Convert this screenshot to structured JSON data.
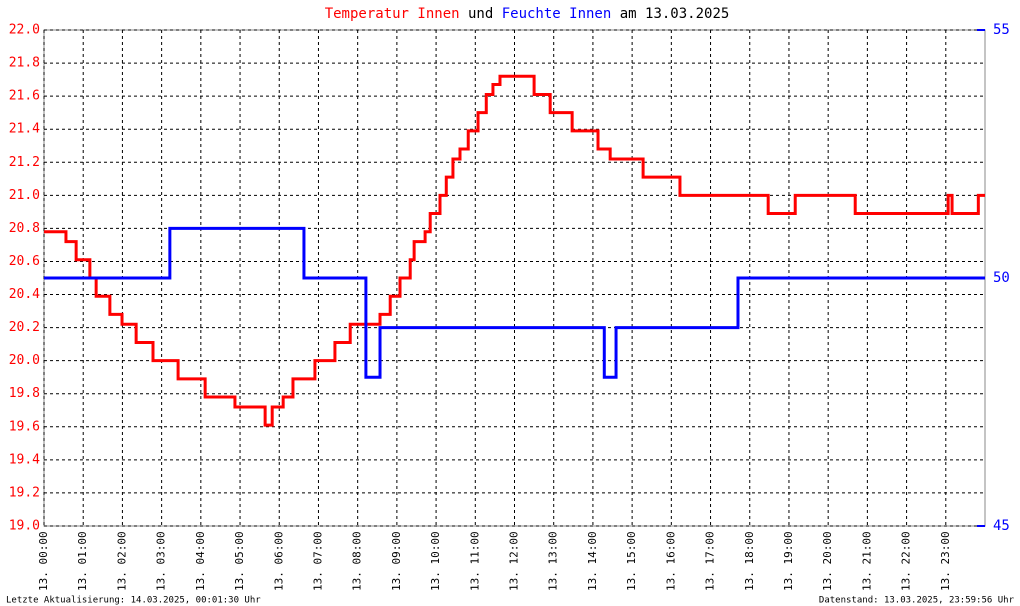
{
  "chart_data": {
    "type": "line",
    "title_parts": [
      "und",
      "am 13.03.2025"
    ],
    "xlim": [
      0,
      24
    ],
    "xticks": [
      {
        "value": 0,
        "label": "13. 00:00"
      },
      {
        "value": 1,
        "label": "13. 01:00"
      },
      {
        "value": 2,
        "label": "13. 02:00"
      },
      {
        "value": 3,
        "label": "13. 03:00"
      },
      {
        "value": 4,
        "label": "13. 04:00"
      },
      {
        "value": 5,
        "label": "13. 05:00"
      },
      {
        "value": 6,
        "label": "13. 06:00"
      },
      {
        "value": 7,
        "label": "13. 07:00"
      },
      {
        "value": 8,
        "label": "13. 08:00"
      },
      {
        "value": 9,
        "label": "13. 09:00"
      },
      {
        "value": 10,
        "label": "13. 10:00"
      },
      {
        "value": 11,
        "label": "13. 11:00"
      },
      {
        "value": 12,
        "label": "13. 12:00"
      },
      {
        "value": 13,
        "label": "13. 13:00"
      },
      {
        "value": 14,
        "label": "13. 14:00"
      },
      {
        "value": 15,
        "label": "13. 15:00"
      },
      {
        "value": 16,
        "label": "13. 16:00"
      },
      {
        "value": 17,
        "label": "13. 17:00"
      },
      {
        "value": 18,
        "label": "13. 18:00"
      },
      {
        "value": 19,
        "label": "13. 19:00"
      },
      {
        "value": 20,
        "label": "13. 20:00"
      },
      {
        "value": 21,
        "label": "13. 21:00"
      },
      {
        "value": 22,
        "label": "13. 22:00"
      },
      {
        "value": 23,
        "label": "13. 23:00"
      }
    ],
    "ylim": [
      19.0,
      22.0
    ],
    "yticks": [
      {
        "value": 19.0,
        "label": "19.0"
      },
      {
        "value": 19.2,
        "label": "19.2"
      },
      {
        "value": 19.4,
        "label": "19.4"
      },
      {
        "value": 19.6,
        "label": "19.6"
      },
      {
        "value": 19.8,
        "label": "19.8"
      },
      {
        "value": 20.0,
        "label": "20.0"
      },
      {
        "value": 20.2,
        "label": "20.2"
      },
      {
        "value": 20.4,
        "label": "20.4"
      },
      {
        "value": 20.6,
        "label": "20.6"
      },
      {
        "value": 20.8,
        "label": "20.8"
      },
      {
        "value": 21.0,
        "label": "21.0"
      },
      {
        "value": 21.2,
        "label": "21.2"
      },
      {
        "value": 21.4,
        "label": "21.4"
      },
      {
        "value": 21.6,
        "label": "21.6"
      },
      {
        "value": 21.8,
        "label": "21.8"
      },
      {
        "value": 22.0,
        "label": "22.0"
      }
    ],
    "y2lim": [
      45,
      55
    ],
    "y2ticks": [
      45,
      50,
      55
    ],
    "grid": true,
    "series": [
      {
        "name": "Temperatur Innen",
        "color": "#ff0000",
        "x": [
          0,
          0.56,
          0.56,
          0.82,
          0.82,
          1.17,
          1.17,
          1.33,
          1.33,
          1.68,
          1.68,
          1.99,
          1.99,
          2.35,
          2.35,
          2.78,
          2.78,
          3.42,
          3.42,
          4.11,
          4.11,
          4.87,
          4.87,
          5.64,
          5.64,
          5.82,
          5.82,
          6.1,
          6.1,
          6.35,
          6.35,
          6.91,
          6.91,
          7.42,
          7.42,
          7.81,
          7.81,
          8.57,
          8.57,
          8.83,
          8.83,
          9.08,
          9.08,
          9.34,
          9.34,
          9.44,
          9.44,
          9.72,
          9.72,
          9.85,
          9.85,
          10.1,
          10.1,
          10.26,
          10.26,
          10.43,
          10.43,
          10.61,
          10.61,
          10.82,
          10.82,
          11.07,
          11.07,
          11.28,
          11.28,
          11.45,
          11.45,
          11.63,
          11.63,
          12.5,
          12.5,
          12.91,
          12.91,
          13.47,
          13.47,
          14.13,
          14.13,
          14.44,
          14.44,
          15.28,
          15.28,
          16.22,
          16.22,
          18.47,
          18.47,
          19.16,
          19.16,
          20.69,
          20.69,
          23.06,
          23.06,
          23.16,
          23.16,
          23.83,
          23.83,
          24
        ],
        "values": [
          20.78,
          20.78,
          20.72,
          20.72,
          20.61,
          20.61,
          20.5,
          20.5,
          20.39,
          20.39,
          20.28,
          20.28,
          20.22,
          20.22,
          20.11,
          20.11,
          20.0,
          20.0,
          19.89,
          19.89,
          19.78,
          19.78,
          19.72,
          19.72,
          19.61,
          19.61,
          19.72,
          19.72,
          19.78,
          19.78,
          19.89,
          19.89,
          20.0,
          20.0,
          20.11,
          20.11,
          20.22,
          20.22,
          20.28,
          20.28,
          20.39,
          20.39,
          20.5,
          20.5,
          20.61,
          20.61,
          20.72,
          20.72,
          20.78,
          20.78,
          20.89,
          20.89,
          21.0,
          21.0,
          21.11,
          21.11,
          21.22,
          21.22,
          21.28,
          21.28,
          21.39,
          21.39,
          21.5,
          21.5,
          21.61,
          21.61,
          21.67,
          21.67,
          21.72,
          21.72,
          21.61,
          21.61,
          21.5,
          21.5,
          21.39,
          21.39,
          21.28,
          21.28,
          21.22,
          21.22,
          21.11,
          21.11,
          21.0,
          21.0,
          20.89,
          20.89,
          21.0,
          21.0,
          20.89,
          20.89,
          21.0,
          21.0,
          20.89,
          20.89,
          21.0,
          21.0
        ]
      },
      {
        "name": "Feuchte Innen",
        "color": "#0000ff",
        "axis": "y2",
        "x": [
          0,
          3.21,
          3.21,
          6.63,
          6.63,
          8.21,
          8.21,
          8.57,
          8.57,
          14.29,
          14.29,
          14.59,
          14.59,
          17.7,
          17.7,
          24
        ],
        "values": [
          50,
          50,
          51,
          51,
          50,
          50,
          48,
          48,
          49,
          49,
          48,
          48,
          49,
          49,
          50,
          50
        ]
      }
    ],
    "footer_left": "Letzte Aktualisierung: 14.03.2025, 00:01:30 Uhr",
    "footer_right": "Datenstand: 13.03.2025, 23:59:56 Uhr"
  }
}
